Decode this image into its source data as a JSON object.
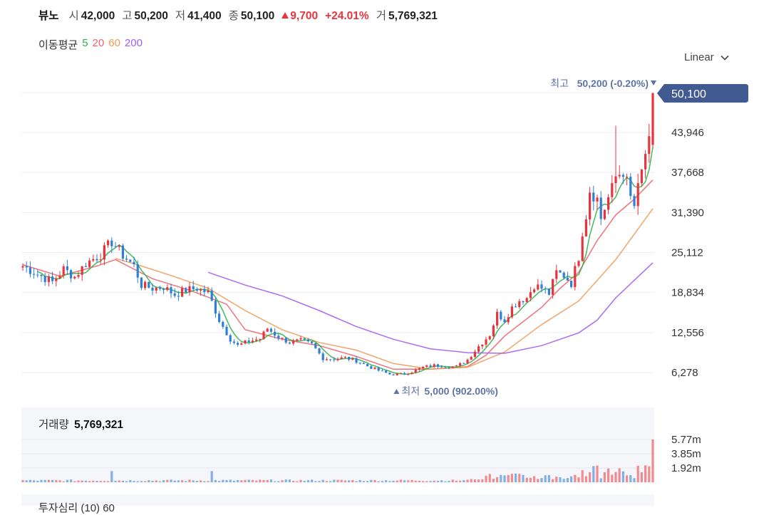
{
  "stock": {
    "name": "뷰노",
    "open_label": "시",
    "open": "42,000",
    "high_label": "고",
    "high": "50,200",
    "low_label": "저",
    "low": "41,400",
    "close_label": "종",
    "close": "50,100",
    "change": "9,700",
    "change_pct": "+24.01%",
    "volume_label": "거",
    "volume": "5,769,321"
  },
  "moving_average": {
    "title": "이동평균",
    "periods": [
      {
        "label": "5",
        "color": "#2fb14a"
      },
      {
        "label": "20",
        "color": "#f0626a"
      },
      {
        "label": "60",
        "color": "#f09a59"
      },
      {
        "label": "200",
        "color": "#a35cf0"
      }
    ]
  },
  "scale_toggle": {
    "label": "Linear"
  },
  "annotations": {
    "max_label": "최고",
    "max_value": "50,200 (-0.20%)",
    "min_label": "최저",
    "min_value": "5,000 (902.00%)",
    "last_price_tag": "50,100"
  },
  "volume_panel": {
    "title": "거래량",
    "value": "5,769,321"
  },
  "next_panel": {
    "title": "투자심리 (10) 60"
  },
  "colors": {
    "up": "#e8343d",
    "down": "#2f7fd6",
    "tag_bg": "#415a92",
    "annotation": "#5f74a6"
  },
  "chart_data": {
    "type": "candlestick",
    "y_axis_ticks": [
      "43,946",
      "37,668",
      "31,390",
      "25,112",
      "18,834",
      "12,556",
      "6,278"
    ],
    "y_tick_values": [
      43946,
      37668,
      31390,
      25112,
      18834,
      12556,
      6278
    ],
    "ylim": [
      0,
      52000
    ],
    "volume_ticks": [
      "5.77m",
      "3.85m",
      "1.92m"
    ],
    "volume_tick_values": [
      5770000,
      3850000,
      1920000
    ],
    "volume_max": 5770000,
    "close_path": [
      [
        0,
        23000
      ],
      [
        4,
        21700
      ],
      [
        8,
        20500
      ],
      [
        11,
        22500
      ],
      [
        14,
        21300
      ],
      [
        17,
        23400
      ],
      [
        21,
        24800
      ],
      [
        24,
        26800
      ],
      [
        27,
        24700
      ],
      [
        30,
        23000
      ],
      [
        32,
        20000
      ],
      [
        35,
        19500
      ],
      [
        38,
        19700
      ],
      [
        41,
        18500
      ],
      [
        44,
        19200
      ],
      [
        47,
        19500
      ],
      [
        50,
        18800
      ],
      [
        53,
        14500
      ],
      [
        56,
        11500
      ],
      [
        58,
        10500
      ],
      [
        61,
        11200
      ],
      [
        64,
        11600
      ],
      [
        66,
        13200
      ],
      [
        69,
        11800
      ],
      [
        72,
        11000
      ],
      [
        75,
        11300
      ],
      [
        78,
        10700
      ],
      [
        81,
        8500
      ],
      [
        84,
        8400
      ],
      [
        87,
        8600
      ],
      [
        90,
        8100
      ],
      [
        93,
        7300
      ],
      [
        96,
        6600
      ],
      [
        99,
        6000
      ],
      [
        102,
        6000
      ],
      [
        105,
        6400
      ],
      [
        108,
        7100
      ],
      [
        111,
        7400
      ],
      [
        114,
        7300
      ],
      [
        117,
        7200
      ],
      [
        120,
        8300
      ],
      [
        123,
        10400
      ],
      [
        126,
        12200
      ],
      [
        128,
        15500
      ],
      [
        130,
        14500
      ],
      [
        132,
        16500
      ],
      [
        134,
        17600
      ],
      [
        136,
        18000
      ],
      [
        138,
        20000
      ],
      [
        140,
        19500
      ],
      [
        142,
        18700
      ],
      [
        144,
        22000
      ],
      [
        146,
        21500
      ],
      [
        148,
        20300
      ],
      [
        150,
        24500
      ],
      [
        151,
        28500
      ],
      [
        152,
        31000
      ],
      [
        153,
        35000
      ],
      [
        155,
        33500
      ],
      [
        156,
        30500
      ],
      [
        158,
        33700
      ],
      [
        159,
        35000
      ],
      [
        160,
        37000
      ],
      [
        162,
        38000
      ],
      [
        163,
        36000
      ],
      [
        164,
        33600
      ],
      [
        165,
        32400
      ],
      [
        166,
        35000
      ],
      [
        167,
        37700
      ],
      [
        168,
        40700
      ],
      [
        169,
        42000
      ],
      [
        170,
        50100
      ]
    ],
    "spikes": [
      {
        "i": 160,
        "high": 45000
      },
      {
        "i": 170,
        "high": 50200
      }
    ],
    "extremes": {
      "max": {
        "i": 170,
        "value": 50200
      },
      "min": {
        "i": 102,
        "value": 5000
      }
    },
    "x_count": 171,
    "ma_series": [
      {
        "name": "20",
        "color": "#f0626a",
        "points": [
          [
            0,
            23200
          ],
          [
            10,
            21400
          ],
          [
            20,
            23000
          ],
          [
            25,
            24000
          ],
          [
            35,
            21000
          ],
          [
            45,
            19200
          ],
          [
            55,
            17000
          ],
          [
            60,
            13000
          ],
          [
            70,
            11500
          ],
          [
            80,
            10500
          ],
          [
            90,
            8800
          ],
          [
            100,
            6800
          ],
          [
            110,
            6800
          ],
          [
            120,
            7200
          ],
          [
            125,
            9000
          ],
          [
            130,
            12000
          ],
          [
            140,
            16500
          ],
          [
            145,
            19500
          ],
          [
            150,
            22000
          ],
          [
            155,
            27000
          ],
          [
            160,
            31000
          ],
          [
            165,
            33500
          ],
          [
            170,
            36500
          ]
        ]
      },
      {
        "name": "60",
        "color": "#f09a59",
        "points": [
          [
            25,
            24200
          ],
          [
            32,
            23000
          ],
          [
            40,
            21500
          ],
          [
            50,
            19500
          ],
          [
            60,
            16000
          ],
          [
            70,
            13000
          ],
          [
            80,
            11000
          ],
          [
            90,
            9800
          ],
          [
            100,
            7700
          ],
          [
            110,
            6800
          ],
          [
            120,
            7100
          ],
          [
            130,
            9500
          ],
          [
            140,
            13800
          ],
          [
            150,
            17500
          ],
          [
            160,
            24000
          ],
          [
            165,
            28000
          ],
          [
            170,
            32000
          ]
        ]
      },
      {
        "name": "200",
        "color": "#a35cf0",
        "points": [
          [
            50,
            22000
          ],
          [
            60,
            20000
          ],
          [
            70,
            18300
          ],
          [
            80,
            16000
          ],
          [
            90,
            13500
          ],
          [
            100,
            11500
          ],
          [
            110,
            10000
          ],
          [
            120,
            9400
          ],
          [
            130,
            9300
          ],
          [
            140,
            10500
          ],
          [
            150,
            12500
          ],
          [
            155,
            14500
          ],
          [
            160,
            18000
          ],
          [
            170,
            23500
          ]
        ]
      }
    ]
  }
}
